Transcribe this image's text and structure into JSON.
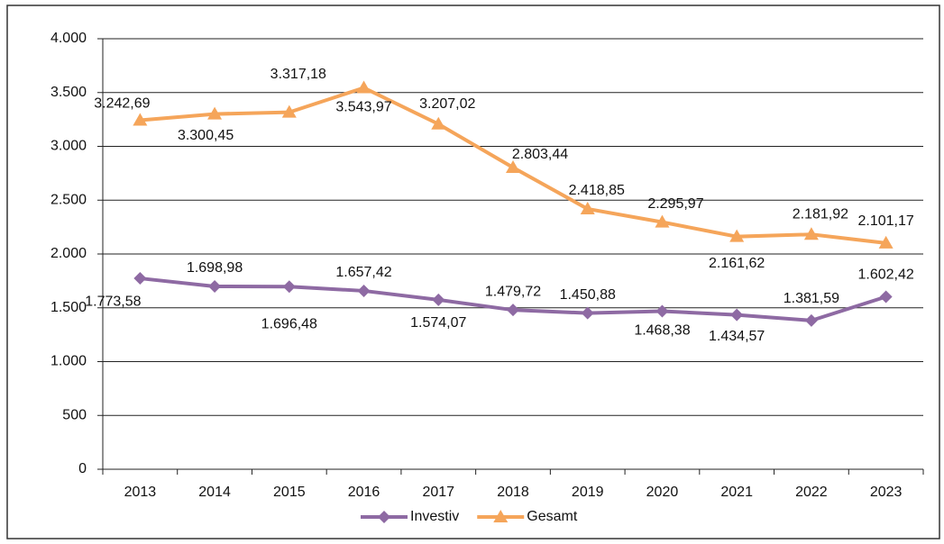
{
  "chart_data": {
    "type": "line",
    "categories": [
      "2013",
      "2014",
      "2015",
      "2016",
      "2017",
      "2018",
      "2019",
      "2020",
      "2021",
      "2022",
      "2023"
    ],
    "series": [
      {
        "name": "Investiv",
        "color": "#8e6aa3",
        "marker": "diamond",
        "values": [
          1773.58,
          1698.98,
          1696.48,
          1657.42,
          1574.07,
          1479.72,
          1450.88,
          1468.38,
          1434.57,
          1381.59,
          1602.42
        ],
        "value_labels": [
          "1.773,58",
          "1.698,98",
          "1.696,48",
          "1.657,42",
          "1.574,07",
          "1.479,72",
          "1.450,88",
          "1.468,38",
          "1.434,57",
          "1.381,59",
          "1.602,42"
        ]
      },
      {
        "name": "Gesamt",
        "color": "#f5a55a",
        "marker": "triangle",
        "values": [
          3242.69,
          3300.45,
          3317.18,
          3543.97,
          3207.02,
          2803.44,
          2418.85,
          2295.97,
          2161.62,
          2181.92,
          2101.17
        ],
        "value_labels": [
          "3.242,69",
          "3.300,45",
          "3.317,18",
          "3.543,97",
          "3.207,02",
          "2.803,44",
          "2.418,85",
          "2.295,97",
          "2.161,62",
          "2.181,92",
          "2.101,17"
        ]
      }
    ],
    "ylim": [
      0,
      4000
    ],
    "yticks": [
      0,
      500,
      {
        "value": 1000,
        "label": "1.000"
      },
      {
        "value": 1500,
        "label": "1.500"
      },
      {
        "value": 2000,
        "label": "2.000"
      },
      {
        "value": 2500,
        "label": "2.500"
      },
      {
        "value": 3000,
        "label": "3.000"
      },
      {
        "value": 3500,
        "label": "3.500"
      },
      {
        "value": 4000,
        "label": "4.000"
      }
    ],
    "grid": true,
    "legend": "bottom"
  }
}
